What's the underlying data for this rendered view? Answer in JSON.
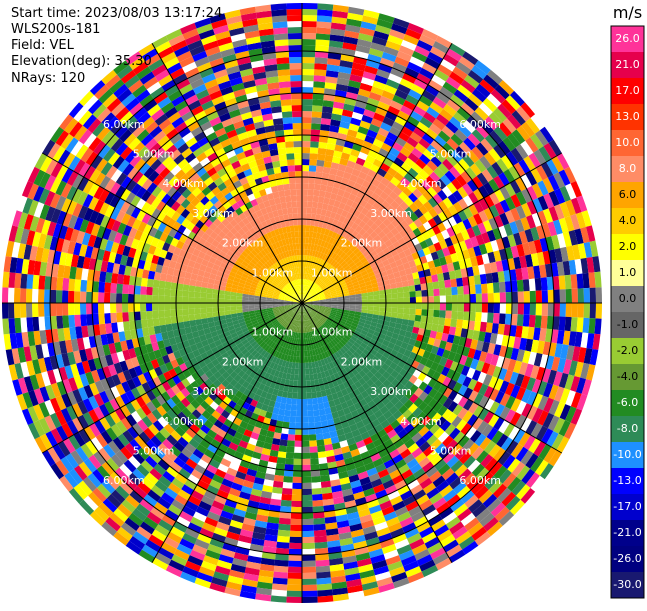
{
  "header": {
    "start_time": "Start time: 2023/08/03 13:17:24",
    "instrument": "WLS200s-181",
    "field": "Field: VEL",
    "elevation": "Elevation(deg): 35.30",
    "nrays": "NRays: 120"
  },
  "chart_data": {
    "type": "heatmap",
    "projection": "polar (PPI)",
    "rings_km": [
      1,
      2,
      3,
      4,
      5,
      6
    ],
    "ring_label_texts": [
      "1.00km",
      "2.00km",
      "3.00km",
      "4.00km",
      "5.00km",
      "6.00km"
    ],
    "colorbar": {
      "title": "m/s",
      "ticks": [
        "26.0",
        "21.0",
        "17.0",
        "13.0",
        "10.0",
        "8.0",
        "6.0",
        "4.0",
        "2.0",
        "1.0",
        "0.0",
        "-1.0",
        "-2.0",
        "-4.0",
        "-6.0",
        "-8.0",
        "-10.0",
        "-13.0",
        "-17.0",
        "-21.0",
        "-26.0",
        "-30.0"
      ],
      "colors": [
        "#ff3399",
        "#e6004c",
        "#ff0000",
        "#ff3300",
        "#ff6633",
        "#ff8c66",
        "#ffa500",
        "#ffcc00",
        "#ffff00",
        "#ffff99",
        "#808080",
        "#666666",
        "#99cc33",
        "#669933",
        "#228b22",
        "#2e8b57",
        "#1e90ff",
        "#0000ff",
        "#0000cd",
        "#00008b",
        "#000080",
        "#191970"
      ]
    },
    "summary": "Velocity field: positive (orange/yellow) to north, negative (green/blue) to south, noisy colours beyond ~2.5 km"
  }
}
